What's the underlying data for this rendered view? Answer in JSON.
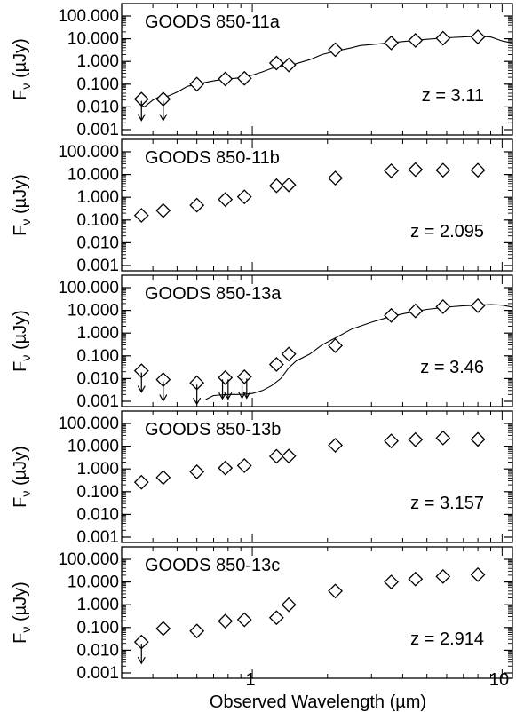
{
  "xaxis": {
    "label": "Observed Wavelength (µm)",
    "tick_labels": [
      "1",
      "10"
    ]
  },
  "yaxis": {
    "label_main": "F",
    "label_sub": "ν",
    "label_unit": "(µJy)",
    "tick_labels": [
      "100.000",
      "10.000",
      "1.000",
      "0.100",
      "0.010",
      "0.001"
    ]
  },
  "chart_data": [
    {
      "type": "scatter",
      "title": "GOODS 850-11a",
      "redshift": "z = 3.11",
      "x_scale": "log",
      "y_scale": "log",
      "xlim": [
        0.3,
        11.0
      ],
      "ylim": [
        0.001,
        100.0
      ],
      "series": [
        {
          "marker": "diamond",
          "x": [
            0.36,
            0.44,
            0.6,
            0.78,
            0.93,
            1.25,
            1.4,
            2.15,
            3.6,
            4.5,
            5.8,
            8.0
          ],
          "y": [
            0.022,
            0.022,
            0.1,
            0.17,
            0.18,
            0.85,
            0.7,
            3.3,
            6.5,
            8.5,
            10.5,
            12.0
          ]
        },
        {
          "marker": "upper-limit-arrow",
          "x": [
            0.36,
            0.44
          ],
          "y": [
            0.022,
            0.022
          ]
        },
        {
          "line": "model-sed",
          "x": [
            0.35,
            0.37,
            0.4,
            0.43,
            0.46,
            0.5,
            0.55,
            0.6,
            0.65,
            0.7,
            0.78,
            0.85,
            0.93,
            1.0,
            1.1,
            1.2,
            1.3,
            1.4,
            1.5,
            1.7,
            1.9,
            2.2,
            2.5,
            2.7,
            3.0,
            3.5,
            4.0,
            4.5,
            5.0,
            6.0,
            7.0,
            8.0,
            9.0,
            10.0,
            11.0
          ],
          "y": [
            0.015,
            0.01,
            0.02,
            0.03,
            0.03,
            0.045,
            0.08,
            0.1,
            0.12,
            0.14,
            0.17,
            0.18,
            0.2,
            0.25,
            0.35,
            0.5,
            0.6,
            0.65,
            0.8,
            1.2,
            2.0,
            3.0,
            4.0,
            5.0,
            5.5,
            6.5,
            7.5,
            8.5,
            9.5,
            11.0,
            12.0,
            13.0,
            12.0,
            8.0,
            6.5
          ]
        }
      ]
    },
    {
      "type": "scatter",
      "title": "GOODS 850-11b",
      "redshift": "z = 2.095",
      "x_scale": "log",
      "y_scale": "log",
      "xlim": [
        0.3,
        11.0
      ],
      "ylim": [
        0.001,
        100.0
      ],
      "series": [
        {
          "marker": "diamond",
          "x": [
            0.36,
            0.44,
            0.6,
            0.78,
            0.93,
            1.25,
            1.4,
            2.15,
            3.6,
            4.5,
            5.8,
            8.0
          ],
          "y": [
            0.16,
            0.26,
            0.45,
            0.8,
            1.05,
            3.2,
            3.5,
            7.0,
            14.5,
            16.5,
            15.5,
            15.5
          ]
        }
      ]
    },
    {
      "type": "scatter",
      "title": "GOODS 850-13a",
      "redshift": "z = 3.46",
      "x_scale": "log",
      "y_scale": "log",
      "xlim": [
        0.3,
        11.0
      ],
      "ylim": [
        0.001,
        100.0
      ],
      "series": [
        {
          "marker": "diamond",
          "x": [
            0.36,
            0.44,
            0.6,
            0.78,
            0.93,
            1.25,
            1.4,
            2.15,
            3.6,
            4.5,
            5.8,
            8.0
          ],
          "y": [
            0.022,
            0.009,
            0.0065,
            0.011,
            0.012,
            0.042,
            0.12,
            0.28,
            6.0,
            9.5,
            14.5,
            16.0
          ]
        },
        {
          "marker": "upper-limit-arrow",
          "x": [
            0.36,
            0.44,
            0.6,
            0.76,
            0.8,
            0.91,
            0.95
          ],
          "y": [
            0.022,
            0.009,
            0.0065,
            0.011,
            0.011,
            0.012,
            0.012
          ]
        },
        {
          "line": "model-sed",
          "x": [
            0.65,
            0.7,
            0.8,
            0.9,
            1.0,
            1.1,
            1.2,
            1.3,
            1.4,
            1.5,
            1.7,
            1.9,
            2.2,
            2.5,
            3.0,
            3.5,
            4.0,
            4.5,
            5.0,
            6.0,
            7.0,
            8.0,
            9.0,
            10.0,
            11.0
          ],
          "y": [
            0.0012,
            0.0018,
            0.002,
            0.002,
            0.0022,
            0.003,
            0.005,
            0.01,
            0.03,
            0.06,
            0.12,
            0.3,
            0.7,
            1.5,
            3.0,
            5.0,
            7.0,
            9.0,
            11.0,
            14.0,
            16.0,
            17.0,
            18.0,
            17.0,
            14.0
          ]
        }
      ]
    },
    {
      "type": "scatter",
      "title": "GOODS 850-13b",
      "redshift": "z = 3.157",
      "x_scale": "log",
      "y_scale": "log",
      "xlim": [
        0.3,
        11.0
      ],
      "ylim": [
        0.001,
        100.0
      ],
      "series": [
        {
          "marker": "diamond",
          "x": [
            0.36,
            0.44,
            0.6,
            0.78,
            0.93,
            1.25,
            1.4,
            2.15,
            3.6,
            4.5,
            5.8,
            8.0
          ],
          "y": [
            0.26,
            0.42,
            0.75,
            1.1,
            1.4,
            3.6,
            3.7,
            11.0,
            17.0,
            19.5,
            23.0,
            20.0
          ]
        }
      ]
    },
    {
      "type": "scatter",
      "title": "GOODS 850-13c",
      "redshift": "z = 2.914",
      "x_scale": "log",
      "y_scale": "log",
      "xlim": [
        0.3,
        11.0
      ],
      "ylim": [
        0.001,
        100.0
      ],
      "series": [
        {
          "marker": "diamond",
          "x": [
            0.36,
            0.44,
            0.6,
            0.78,
            0.93,
            1.25,
            1.4,
            2.15,
            3.6,
            4.5,
            5.8,
            8.0
          ],
          "y": [
            0.023,
            0.09,
            0.07,
            0.19,
            0.22,
            0.27,
            1.0,
            4.0,
            10.0,
            13.5,
            17.5,
            21.0
          ]
        },
        {
          "marker": "upper-limit-arrow",
          "x": [
            0.36
          ],
          "y": [
            0.023
          ]
        }
      ]
    }
  ]
}
